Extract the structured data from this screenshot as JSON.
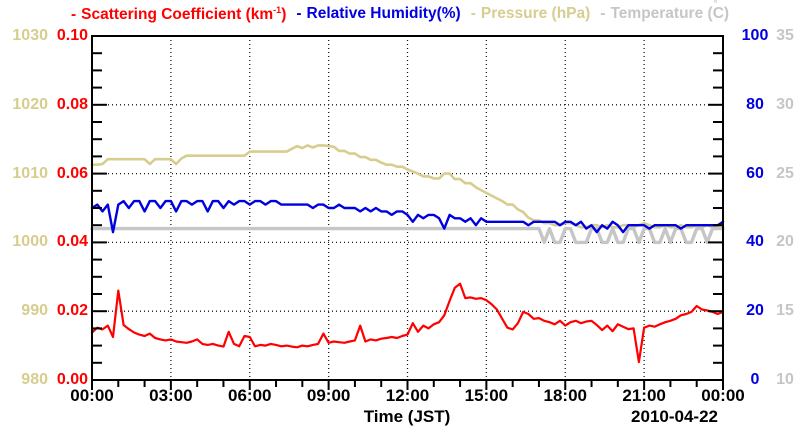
{
  "legend": {
    "items": [
      {
        "dash": "-",
        "pre": "Scattering Coefficient (km",
        "sup": "-1",
        "post": ")",
        "color": "#ff0000"
      },
      {
        "dash": "-",
        "pre": "Relative Humidity(%)",
        "sup": "",
        "post": "",
        "color": "#0000e0"
      },
      {
        "dash": "-",
        "pre": "Pressure (hPa)",
        "sup": "",
        "post": "",
        "color": "#d6cd8e"
      },
      {
        "dash": "-",
        "pre": "Temperature (",
        "deg": "°",
        "post": "C)",
        "color": "#c6c6c6"
      }
    ]
  },
  "axes": {
    "pressure": {
      "name": "Pressure",
      "unit": "hPa",
      "color": "#d6cd8e",
      "min": 980,
      "max": 1030,
      "ticks": [
        "1030",
        "1020",
        "1010",
        "1000",
        "990",
        "980"
      ]
    },
    "scattering": {
      "name": "Scattering Coefficient",
      "unit": "km-1",
      "color": "#ff0000",
      "min": 0,
      "max": 0.1,
      "ticks": [
        "0.10",
        "0.08",
        "0.06",
        "0.04",
        "0.02",
        "0.00"
      ]
    },
    "humidity": {
      "name": "Relative Humidity",
      "unit": "%",
      "color": "#0000e0",
      "min": 0,
      "max": 100,
      "ticks": [
        "100",
        "80",
        "60",
        "40",
        "20",
        "0"
      ]
    },
    "temperature": {
      "name": "Temperature",
      "unit": "C",
      "color": "#c6c6c6",
      "min": 10,
      "max": 35,
      "ticks": [
        "35",
        "30",
        "25",
        "20",
        "15",
        "10"
      ]
    },
    "x": {
      "title": "Time (JST)",
      "date": "2010-04-22",
      "min": 0,
      "max": 24,
      "ticks": [
        "00:00",
        "03:00",
        "06:00",
        "09:00",
        "12:00",
        "15:00",
        "18:00",
        "21:00",
        "00:00"
      ],
      "minor_per_major": 3
    }
  },
  "chart_data": {
    "type": "line",
    "title": "",
    "x_unit": "hours JST",
    "x_start": 0,
    "x_step": 0.2,
    "grid": "dotted at 3h verticals and 0.02 horizontals",
    "legend_position": "top",
    "series": [
      {
        "name": "Scattering Coefficient (km-1)",
        "axis": "scattering",
        "color": "#ff0000",
        "values": [
          0.0138,
          0.0152,
          0.0147,
          0.0158,
          0.0125,
          0.026,
          0.016,
          0.0148,
          0.0138,
          0.0132,
          0.0128,
          0.0135,
          0.0122,
          0.0118,
          0.0115,
          0.0118,
          0.0112,
          0.011,
          0.0108,
          0.0112,
          0.0118,
          0.0105,
          0.0102,
          0.0105,
          0.01,
          0.0097,
          0.014,
          0.0105,
          0.0098,
          0.0128,
          0.0125,
          0.0098,
          0.0102,
          0.01,
          0.0105,
          0.0102,
          0.0098,
          0.01,
          0.0097,
          0.0095,
          0.01,
          0.0098,
          0.0102,
          0.0105,
          0.0135,
          0.0108,
          0.0112,
          0.011,
          0.0108,
          0.0112,
          0.0115,
          0.0158,
          0.0112,
          0.0118,
          0.0115,
          0.012,
          0.0122,
          0.0125,
          0.0122,
          0.0128,
          0.0132,
          0.0165,
          0.014,
          0.0158,
          0.015,
          0.0162,
          0.0168,
          0.0188,
          0.023,
          0.0268,
          0.028,
          0.0238,
          0.024,
          0.0236,
          0.0238,
          0.0232,
          0.022,
          0.0205,
          0.0178,
          0.0152,
          0.0147,
          0.0165,
          0.0198,
          0.0192,
          0.0178,
          0.018,
          0.0172,
          0.0168,
          0.0162,
          0.0172,
          0.0158,
          0.0168,
          0.0172,
          0.0165,
          0.017,
          0.0172,
          0.016,
          0.0145,
          0.0158,
          0.0142,
          0.0162,
          0.0155,
          0.0148,
          0.015,
          0.0052,
          0.0152,
          0.0158,
          0.0155,
          0.0162,
          0.0168,
          0.0172,
          0.0178,
          0.0188,
          0.0192,
          0.0198,
          0.0215,
          0.0205,
          0.0202,
          0.0198,
          0.0192,
          0.0198
        ]
      },
      {
        "name": "Relative Humidity (%)",
        "axis": "humidity",
        "color": "#0000e0",
        "values": [
          50,
          51,
          49,
          51,
          43,
          51,
          52,
          50,
          52,
          52,
          49,
          52,
          52,
          50,
          52,
          52,
          49,
          52,
          52,
          51,
          52,
          52,
          49,
          52,
          52,
          50,
          52,
          51,
          52,
          52,
          51,
          52,
          52,
          51,
          52,
          52,
          51,
          51,
          51,
          51,
          51,
          51,
          50,
          51,
          51,
          50,
          50,
          51,
          50,
          50,
          50,
          49,
          50,
          49,
          50,
          49,
          49,
          48,
          49,
          49,
          48,
          46,
          48,
          47,
          48,
          48,
          47,
          44,
          48,
          47,
          47,
          46,
          47,
          45,
          47,
          46,
          46,
          46,
          46,
          46,
          46,
          46,
          46,
          45,
          46,
          46,
          46,
          46,
          46,
          45,
          46,
          46,
          45,
          46,
          44,
          45,
          43,
          45,
          44,
          46,
          45,
          43,
          45,
          45,
          45,
          45,
          44,
          45,
          45,
          45,
          45,
          45,
          44,
          45,
          45,
          45,
          45,
          45,
          45,
          45,
          46
        ]
      },
      {
        "name": "Pressure (hPa)",
        "axis": "pressure",
        "color": "#d6cd8e",
        "values": [
          1011.3,
          1011.3,
          1011.4,
          1012.1,
          1012.1,
          1012.1,
          1012.1,
          1012.1,
          1012.1,
          1012.1,
          1012.1,
          1011.4,
          1012.1,
          1012.1,
          1012.1,
          1012.1,
          1011.4,
          1012.2,
          1012.6,
          1012.6,
          1012.6,
          1012.6,
          1012.6,
          1012.6,
          1012.6,
          1012.6,
          1012.6,
          1012.6,
          1012.6,
          1012.6,
          1013.2,
          1013.2,
          1013.2,
          1013.2,
          1013.2,
          1013.2,
          1013.2,
          1013.2,
          1013.6,
          1014.0,
          1013.7,
          1014.1,
          1013.8,
          1014.1,
          1014.1,
          1014.0,
          1013.9,
          1013.3,
          1013.3,
          1012.9,
          1012.9,
          1012.4,
          1012.4,
          1012.0,
          1012.0,
          1011.6,
          1011.3,
          1011.3,
          1011.0,
          1011.0,
          1010.6,
          1010.3,
          1010.0,
          1009.6,
          1009.6,
          1009.3,
          1009.3,
          1010.0,
          1010.0,
          1009.2,
          1009.2,
          1008.6,
          1008.6,
          1008.0,
          1007.6,
          1007.2,
          1006.8,
          1006.4,
          1006.0,
          1005.5,
          1005.5,
          1004.8,
          1004.4,
          1003.6,
          1003.2,
          1003.2,
          1002.8,
          1002.8,
          1002.5,
          1002.5,
          1002.8,
          1002.8,
          1002.5,
          1002.2,
          1002.2,
          1002.5,
          1002.5,
          1002.2,
          1002.5,
          1002.2,
          1002.2,
          1002.5,
          1002.5,
          1002.2,
          1002.5,
          1002.8,
          1002.5,
          1002.2,
          1002.2,
          1002.5,
          1002.2,
          1002.2,
          1002.5,
          1002.2,
          1002.2,
          1002.5,
          1002.2,
          1002.5,
          1002.2,
          1002.2,
          1002.2
        ]
      },
      {
        "name": "Temperature (C)",
        "axis": "temperature",
        "color": "#c6c6c6",
        "values": [
          21,
          21,
          21,
          21,
          21,
          21,
          21,
          21,
          21,
          21,
          21,
          21,
          21,
          21,
          21,
          21,
          21,
          21,
          21,
          21,
          21,
          21,
          21,
          21,
          21,
          21,
          21,
          21,
          21,
          21,
          21,
          21,
          21,
          21,
          21,
          21,
          21,
          21,
          21,
          21,
          21,
          21,
          21,
          21,
          21,
          21,
          21,
          21,
          21,
          21,
          21,
          21,
          21,
          21,
          21,
          21,
          21,
          21,
          21,
          21,
          21,
          21,
          21,
          21,
          21,
          21,
          21,
          21,
          21,
          21,
          21,
          21,
          21,
          21,
          21,
          21,
          21,
          21,
          21,
          21,
          21,
          21,
          21,
          21,
          21,
          21,
          20,
          21,
          20,
          20,
          21,
          21,
          20,
          20,
          20,
          21,
          21,
          20,
          20,
          21,
          20,
          20,
          21,
          21,
          20,
          21,
          21,
          20,
          20,
          21,
          20,
          21,
          21,
          20,
          20,
          21,
          21,
          20,
          21,
          21,
          21
        ]
      }
    ]
  }
}
